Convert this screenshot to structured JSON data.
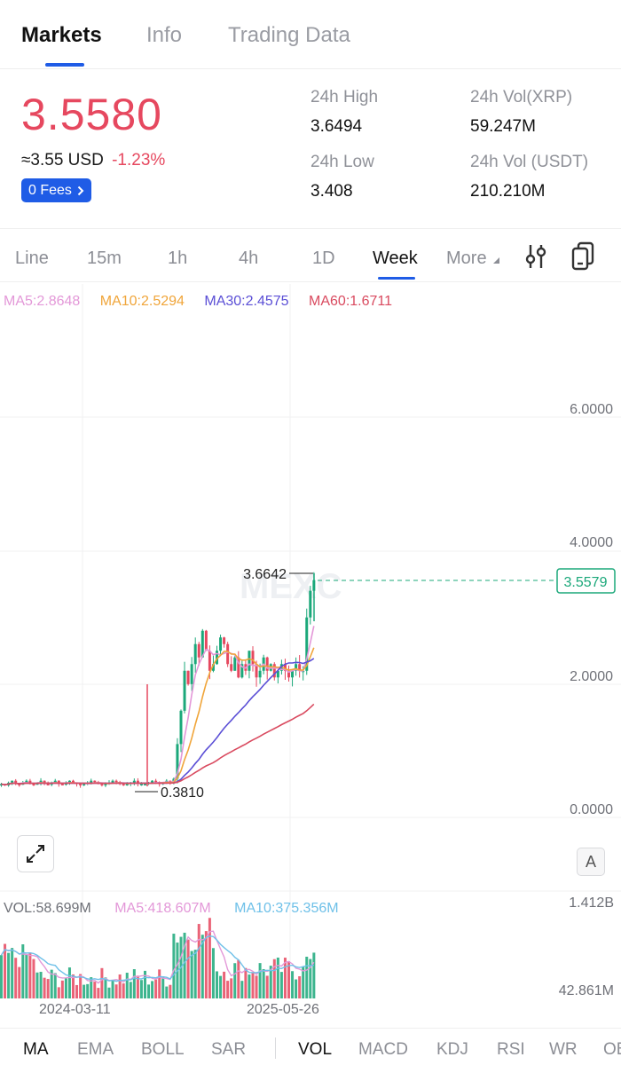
{
  "top_tabs": [
    {
      "label": "Markets"
    },
    {
      "label": "Info"
    },
    {
      "label": "Trading Data"
    }
  ],
  "ticker": {
    "price": "3.5580",
    "usd": "≈3.55 USD",
    "change": "-1.23%",
    "fees": "0 Fees",
    "stats": {
      "high_label": "24h High",
      "high_value": "3.6494",
      "low_label": "24h Low",
      "low_value": "3.408",
      "vol_xrp_label": "24h Vol(XRP)",
      "vol_xrp_value": "59.247M",
      "vol_usdt_label": "24h Vol (USDT)",
      "vol_usdt_value": "210.210M"
    },
    "up_color": "#1ba87a",
    "down_color": "#e6485f"
  },
  "intervals": [
    {
      "label": "Line"
    },
    {
      "label": "15m"
    },
    {
      "label": "1h"
    },
    {
      "label": "4h"
    },
    {
      "label": "1D"
    },
    {
      "label": "Week"
    },
    {
      "label": "More"
    }
  ],
  "active_interval": "Week",
  "tools": [
    "indicator-settings-icon",
    "copy-icon"
  ],
  "ma_legend": {
    "ma5": "MA5:2.8648",
    "ma10": "MA10:2.5294",
    "ma30": "MA30:2.4575",
    "ma60": "MA60:1.6711",
    "ma5_color": "#e398d8",
    "ma10_color": "#f0a53a",
    "ma30_color": "#5b4fd6",
    "ma60_color": "#d94a5f"
  },
  "price_axis": [
    "6.0000",
    "4.0000",
    "2.0000",
    "0.0000"
  ],
  "annotations": {
    "high": "3.6642",
    "low": "0.3810",
    "last": "3.5579"
  },
  "watermark": "MEXC",
  "expand_icon": "expand-icon",
  "scale_button": "A",
  "volume_legend": {
    "vol": "VOL:58.699M",
    "ma5": "MA5:418.607M",
    "ma10": "MA10:375.356M",
    "ma5_color": "#e398d8",
    "ma10_color": "#6ec0e8"
  },
  "volume_axis": [
    "1.412B",
    "42.861M"
  ],
  "dates": [
    "2024-03-11",
    "2025-05-26"
  ],
  "indicator_tabs_main": [
    {
      "label": "MA"
    },
    {
      "label": "EMA"
    },
    {
      "label": "BOLL"
    },
    {
      "label": "SAR"
    }
  ],
  "indicator_tabs_sub": [
    {
      "label": "VOL"
    },
    {
      "label": "MACD"
    },
    {
      "label": "KDJ"
    },
    {
      "label": "RSI"
    },
    {
      "label": "WR"
    },
    {
      "label": "OBV"
    }
  ],
  "chart_data": {
    "type": "candlestick",
    "ylim": [
      0,
      6.8
    ],
    "yticks": [
      6,
      4,
      2,
      0
    ],
    "weeks": 88,
    "highest": 3.6642,
    "lowest": 0.381,
    "last": 3.5579,
    "approx_weekly_close": [
      0.5,
      0.48,
      0.52,
      0.55,
      0.5,
      0.49,
      0.52,
      0.55,
      0.5,
      0.49,
      0.52,
      0.55,
      0.5,
      0.49,
      0.52,
      0.55,
      0.5,
      0.49,
      0.52,
      0.55,
      0.52,
      0.5,
      0.48,
      0.5,
      0.52,
      0.55,
      0.53,
      0.5,
      0.48,
      0.5,
      0.52,
      0.55,
      0.53,
      0.5,
      0.48,
      0.5,
      0.52,
      0.55,
      0.5,
      0.5,
      0.5,
      0.52,
      0.55,
      0.53,
      0.5,
      0.52,
      0.55,
      0.53,
      0.58,
      1.1,
      1.6,
      2.2,
      2.0,
      2.3,
      2.6,
      2.4,
      2.8,
      2.5,
      2.2,
      2.3,
      2.5,
      2.7,
      2.6,
      2.3,
      2.2,
      2.4,
      2.1,
      2.3,
      2.2,
      2.5,
      2.3,
      2.1,
      2.2,
      2.4,
      2.2,
      2.3,
      2.1,
      2.2,
      2.3,
      2.2,
      2.1,
      2.2,
      2.3,
      2.2,
      2.2,
      3.0,
      3.4,
      3.56
    ],
    "volume_ylim": [
      0.042861,
      1.412
    ],
    "volume_unit": "B"
  }
}
